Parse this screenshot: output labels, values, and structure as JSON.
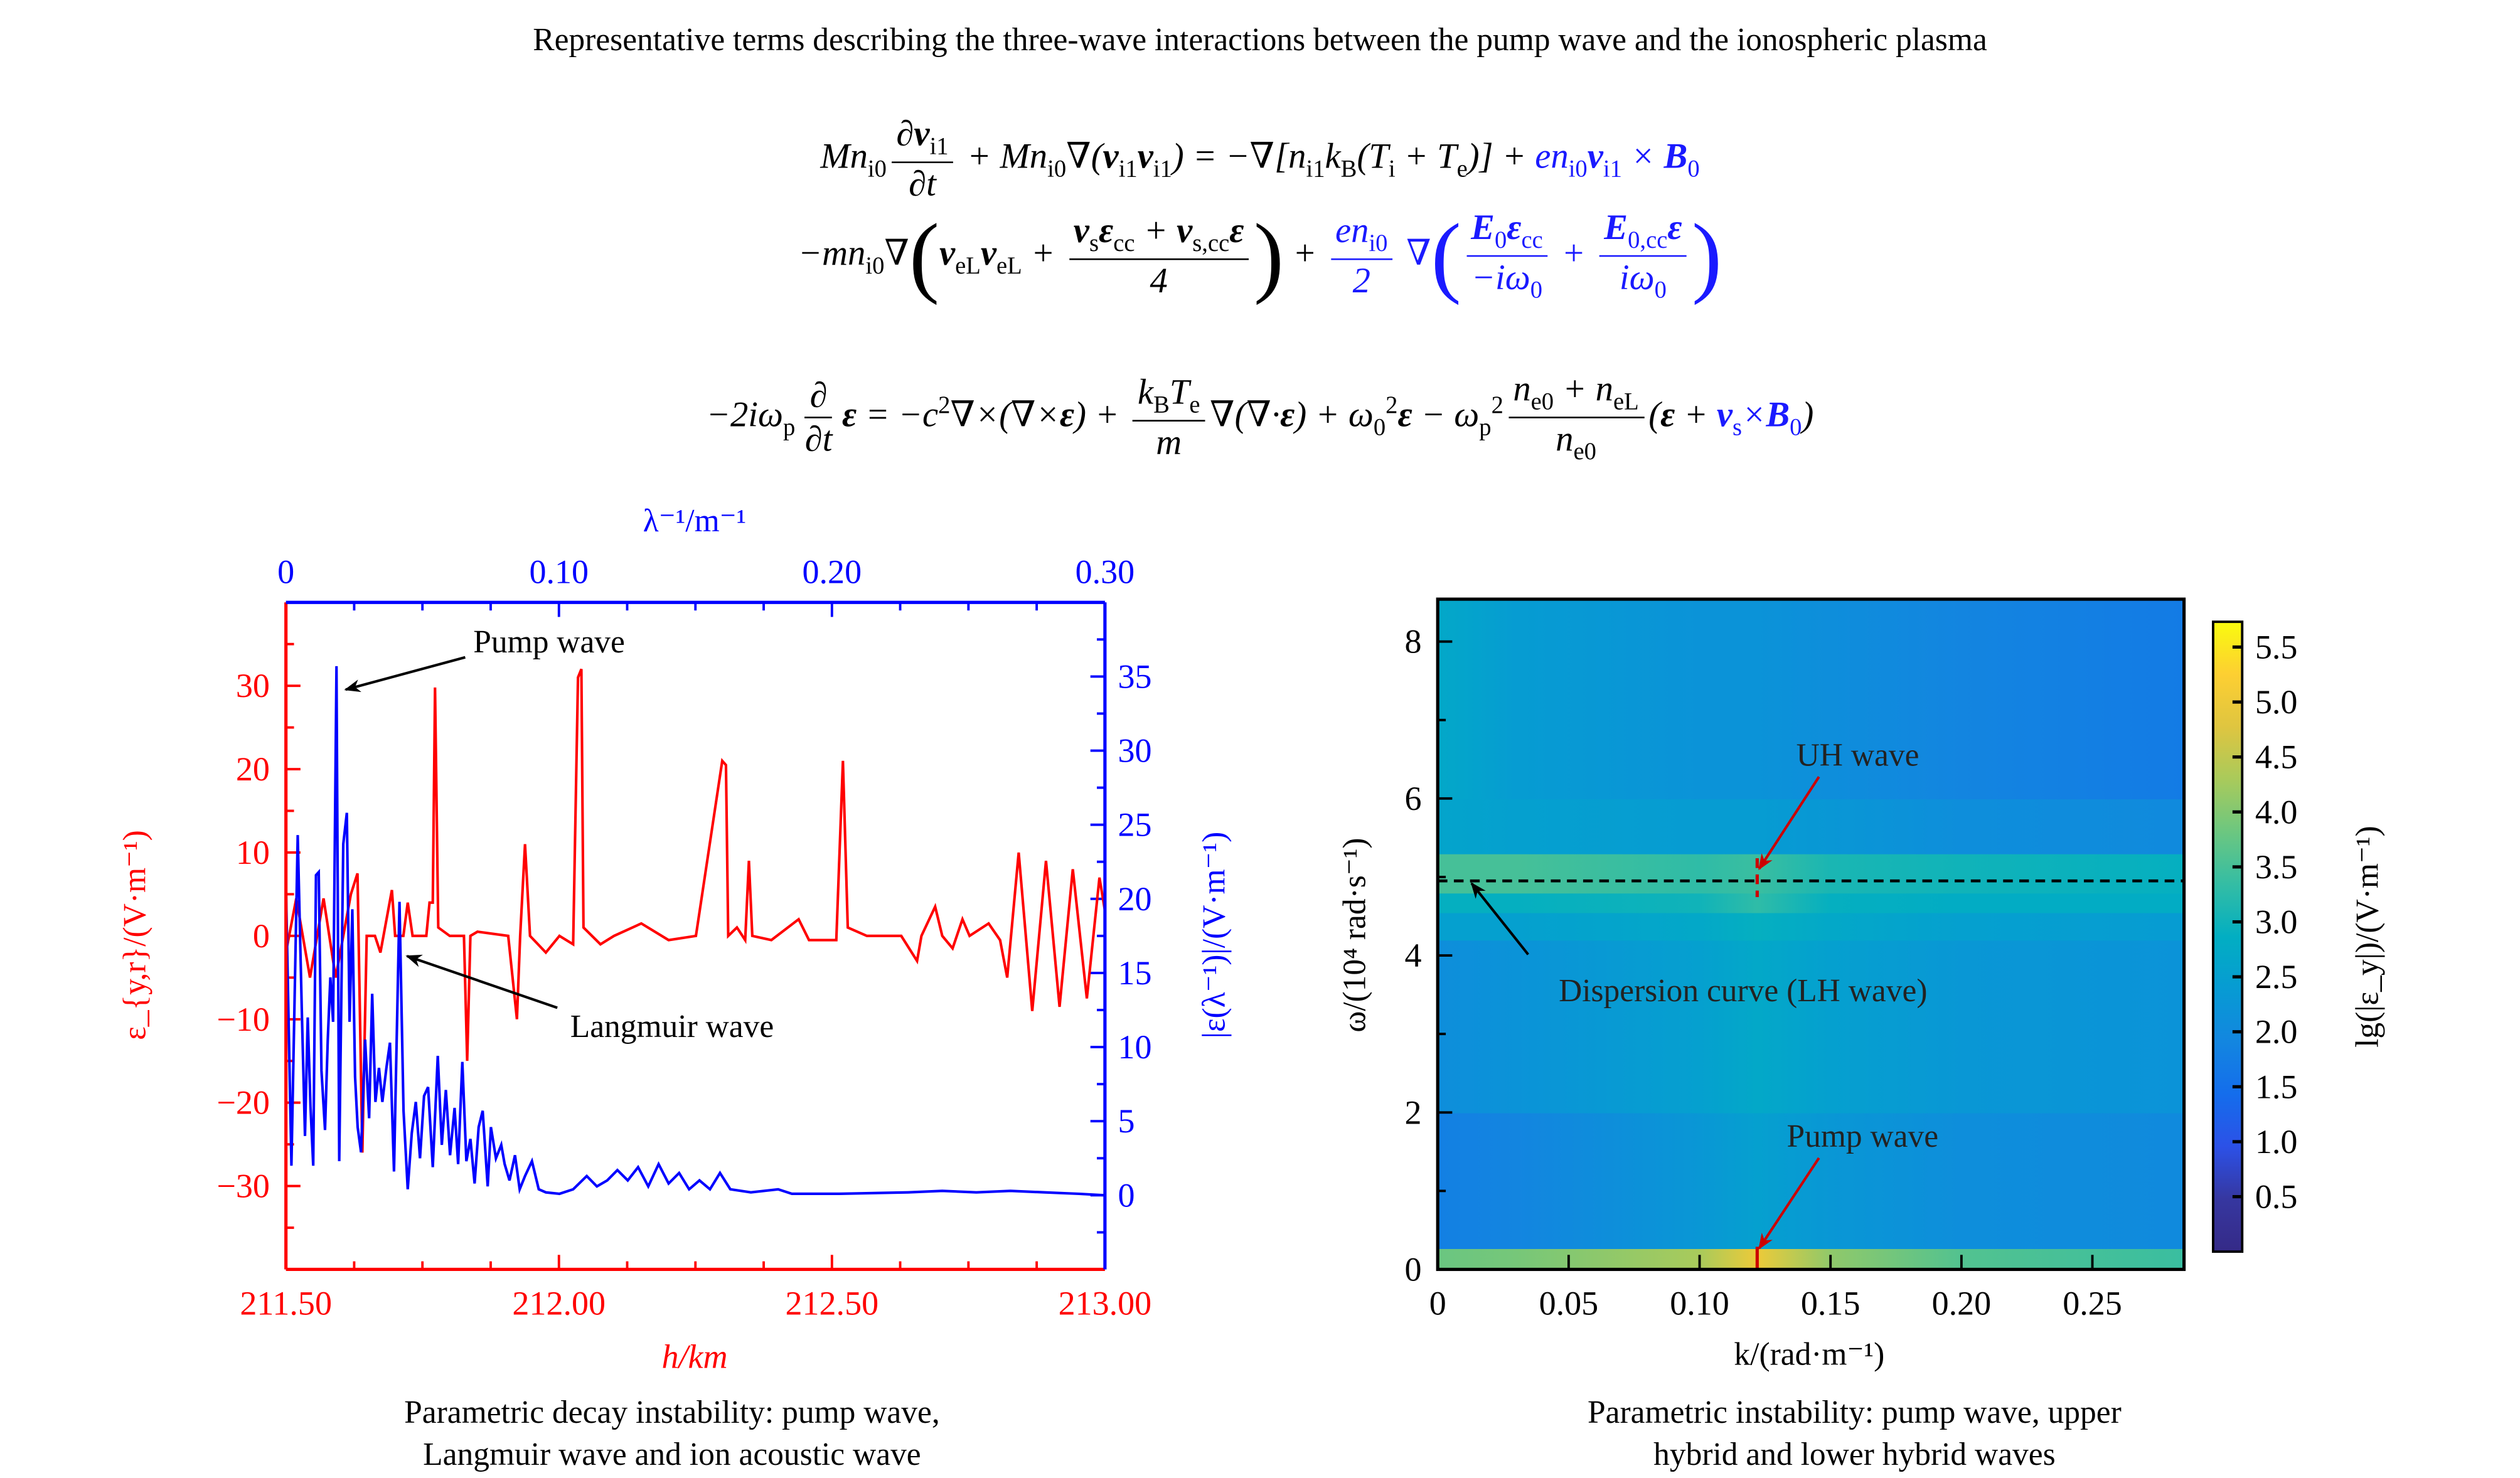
{
  "title": "Representative terms describing the three-wave interactions between the pump wave and the ionospheric plasma",
  "equations": [
    {
      "parts": [
        {
          "t": "Mn_{i0}"
        },
        {
          "f": [
            "∂*v*_{i1}",
            "∂t"
          ]
        },
        {
          "t": " + Mn_{i0}∇(*v*_{i1}*v*_{i1}) = −∇[n_{i1}k_{B}(T_{i} + T_{e})] + "
        },
        {
          "t": "en_{i0}*v*_{i1} × *B*_{0}",
          "c": "blue"
        }
      ]
    },
    {
      "parts": [
        {
          "t": "−mn_{i0}∇"
        },
        {
          "p": "("
        },
        {
          "t": "*v*_{eL}*v*_{eL} + "
        },
        {
          "f": [
            "*v*_{s}*ε*_{cc} + *v*_{s,cc}*ε*",
            "4"
          ]
        },
        {
          "p": ")"
        },
        {
          "t": " + "
        },
        {
          "f": [
            "en_{i0}",
            "2"
          ],
          "c": "blue"
        },
        {
          "t": " ∇",
          "c": "blue"
        },
        {
          "p": "(",
          "c": "blue"
        },
        {
          "f": [
            "*E*_{0}*ε*_{cc}",
            "−iω_{0}"
          ],
          "c": "blue"
        },
        {
          "t": " + ",
          "c": "blue"
        },
        {
          "f": [
            "*E*_{0,cc}*ε*",
            "iω_{0}"
          ],
          "c": "blue"
        },
        {
          "p": ")",
          "c": "blue"
        }
      ]
    },
    {
      "parts": [
        {
          "t": "−2iω_{p}"
        },
        {
          "f": [
            "∂",
            "∂t"
          ]
        },
        {
          "t": "*ε* = −c^{2}∇×(∇×*ε*) + "
        },
        {
          "f": [
            "k_{B}T_{e}",
            "m"
          ]
        },
        {
          "t": "∇(∇·*ε*) + ω_{0}^{2}*ε* − ω_{p}^{2}"
        },
        {
          "f": [
            "n_{e0} + n_{eL}",
            "n_{e0}"
          ]
        },
        {
          "t": "(*ε* + "
        },
        {
          "t": "*v*_{s}×*B*_{0}",
          "c": "blue"
        },
        {
          "t": ")"
        }
      ]
    }
  ],
  "colors": {
    "red": "#ff0000",
    "blue": "#0000ff",
    "annotation_red": "#cc0000",
    "black": "#000000"
  },
  "captions": {
    "left": [
      "Parametric decay instability: pump wave,",
      "Langmuir wave and ion acoustic wave"
    ],
    "right": [
      "Parametric instability: pump wave, upper",
      "hybrid and lower hybrid waves"
    ]
  },
  "chart_data": [
    {
      "type": "line",
      "xlabel": "h/km",
      "x2label": "λ⁻¹/m⁻¹",
      "ylabel": "ε_{y,r}/(V·m⁻¹)",
      "y2label": "|ε(λ⁻¹)|/(V·m⁻¹)",
      "xlim": [
        211.5,
        213.0
      ],
      "x2lim": [
        0,
        0.3
      ],
      "ylim": [
        -40,
        40
      ],
      "y2lim": [
        -5,
        40
      ],
      "xticks": [
        "211.50",
        "212.00",
        "212.50",
        "213.00"
      ],
      "x2ticks": [
        "0",
        "0.10",
        "0.20",
        "0.30"
      ],
      "yticks": [
        "30",
        "20",
        "10",
        "0",
        "−10",
        "−20",
        "−30"
      ],
      "y2ticks": [
        "35",
        "30",
        "25",
        "20",
        "15",
        "10",
        "5",
        "0"
      ],
      "grid": false,
      "annotations": [
        {
          "text": "Pump wave",
          "target": "blue peak ≈ 35.7 at λ⁻¹ ≈ 0.019"
        },
        {
          "text": "Langmuir wave",
          "target": "blue peak ≈ 19.8 at λ⁻¹ ≈ 0.042"
        }
      ],
      "series": [
        {
          "axis": "h / left (red)",
          "color": "#ff0000",
          "x": [
            211.5,
            211.519,
            211.544,
            211.569,
            211.591,
            211.619,
            211.631,
            211.64,
            211.648,
            211.663,
            211.673,
            211.694,
            211.7,
            211.715,
            211.723,
            211.732,
            211.757,
            211.763,
            211.769,
            211.773,
            211.779,
            211.8,
            211.826,
            211.832,
            211.838,
            211.851,
            211.907,
            211.923,
            211.929,
            211.938,
            211.947,
            211.976,
            212.001,
            212.026,
            212.035,
            212.041,
            212.045,
            212.076,
            212.101,
            212.151,
            212.201,
            212.251,
            212.299,
            212.306,
            212.31,
            212.326,
            212.341,
            212.348,
            212.354,
            212.389,
            212.439,
            212.458,
            212.508,
            212.52,
            212.529,
            212.564,
            212.627,
            212.656,
            212.664,
            212.689,
            212.702,
            212.721,
            212.739,
            212.752,
            212.787,
            212.808,
            212.821,
            212.842,
            212.867,
            212.892,
            212.917,
            212.941,
            212.967,
            212.99,
            213.0
          ],
          "y": [
            -2,
            4.5,
            -5,
            4.5,
            -5,
            5,
            7.5,
            -26,
            0,
            0,
            -2,
            5.5,
            0,
            0,
            4,
            0,
            0,
            4,
            4,
            29.8,
            1,
            0,
            0,
            -15,
            0,
            0.5,
            0,
            -10,
            0,
            11,
            0,
            -2,
            0,
            -1,
            31,
            32,
            1,
            -1,
            0,
            1.5,
            -0.5,
            0,
            21,
            20.5,
            0,
            1,
            -0.5,
            9,
            0,
            -0.5,
            2,
            -0.5,
            -0.5,
            21,
            1,
            0,
            0,
            -3,
            0,
            3.5,
            0,
            -1.5,
            2,
            0,
            1.5,
            -0.5,
            -5,
            10,
            -9,
            9,
            -8.5,
            8,
            -7.5,
            7,
            3
          ]
        },
        {
          "axis": "λ⁻¹ / right (blue)",
          "color": "#0000ff",
          "x": [
            0,
            0.002,
            0.0043,
            0.0058,
            0.007,
            0.008,
            0.009,
            0.01,
            0.011,
            0.012,
            0.013,
            0.0143,
            0.0153,
            0.0163,
            0.0173,
            0.0185,
            0.0195,
            0.021,
            0.0223,
            0.0233,
            0.0243,
            0.0253,
            0.0263,
            0.0275,
            0.029,
            0.0305,
            0.0316,
            0.0328,
            0.0341,
            0.0353,
            0.0368,
            0.0381,
            0.0396,
            0.0416,
            0.0431,
            0.0446,
            0.0461,
            0.0476,
            0.0491,
            0.0506,
            0.0521,
            0.0538,
            0.0556,
            0.0571,
            0.0586,
            0.0601,
            0.0618,
            0.0631,
            0.0646,
            0.0661,
            0.0676,
            0.0691,
            0.0706,
            0.0721,
            0.0739,
            0.0751,
            0.0769,
            0.0789,
            0.0801,
            0.0819,
            0.0839,
            0.0856,
            0.0876,
            0.0901,
            0.0926,
            0.0952,
            0.1002,
            0.1052,
            0.1102,
            0.1139,
            0.1177,
            0.1214,
            0.1252,
            0.129,
            0.1327,
            0.1365,
            0.1402,
            0.144,
            0.1477,
            0.1515,
            0.1553,
            0.159,
            0.1628,
            0.1703,
            0.1803,
            0.1853,
            0.2028,
            0.2279,
            0.2404,
            0.2529,
            0.2654,
            0.2779,
            0.2905,
            0.3
          ],
          "y": [
            21,
            2,
            24.3,
            12.6,
            4,
            12,
            6,
            2,
            21.6,
            21.8,
            8.4,
            4.4,
            10.5,
            14.7,
            11.7,
            35.7,
            2.3,
            23.7,
            25.8,
            11.7,
            19.3,
            8,
            4.6,
            2.9,
            10.5,
            5.2,
            13.6,
            6.3,
            8.6,
            6.3,
            8.6,
            10.3,
            1.6,
            19.8,
            5.7,
            0.4,
            4.2,
            6.3,
            2.5,
            6.7,
            7.3,
            1.9,
            9.4,
            3.4,
            7.1,
            2.7,
            5.9,
            2.1,
            9,
            2.3,
            3.8,
            0.8,
            4.6,
            5.7,
            0.6,
            4.6,
            2.5,
            3.4,
            2.1,
            1,
            2.7,
            0.4,
            1.3,
            2.3,
            0.4,
            0.2,
            0.1,
            0.4,
            1.3,
            0.6,
            1.0,
            1.7,
            1.0,
            1.9,
            0.6,
            2.1,
            0.8,
            1.5,
            0.4,
            1.0,
            0.4,
            1.5,
            0.4,
            0.2,
            0.4,
            0.1,
            0.1,
            0.2,
            0.3,
            0.2,
            0.3,
            0.2,
            0.1,
            0
          ]
        }
      ]
    },
    {
      "type": "heatmap",
      "xlabel": "k/(rad·m⁻¹)",
      "ylabel": "ω/(10⁴ rad·s⁻¹)",
      "colorbar_label": "lg(|ε_y|)/(V·m⁻¹)",
      "colormap": "parula",
      "xlim": [
        0,
        0.285
      ],
      "ylim": [
        0,
        8.54
      ],
      "clim": [
        0,
        5.73
      ],
      "xticks": [
        "0",
        "0.05",
        "0.10",
        "0.15",
        "0.20",
        "0.25"
      ],
      "yticks": [
        "0",
        "2",
        "4",
        "6",
        "8"
      ],
      "cticks": [
        "5.5",
        "5.0",
        "4.5",
        "4.0",
        "3.5",
        "3.0",
        "2.5",
        "2.0",
        "1.5",
        "1.0",
        "0.5"
      ],
      "k_columns": [
        0,
        0.03,
        0.1,
        0.122,
        0.15,
        0.2,
        0.285
      ],
      "rows": [
        {
          "omega": [
            0,
            0.27
          ],
          "values": [
            3.8,
            3.9,
            4.3,
            5.0,
            4.1,
            3.6,
            3.4
          ]
        },
        {
          "omega": [
            0.27,
            2.0
          ],
          "values": [
            1.8,
            1.9,
            2.3,
            2.5,
            2.3,
            2.1,
            2.0
          ]
        },
        {
          "omega": [
            2.0,
            4.2
          ],
          "values": [
            2.1,
            2.2,
            2.5,
            2.7,
            2.5,
            2.3,
            2.2
          ]
        },
        {
          "omega": [
            4.2,
            4.55
          ],
          "values": [
            2.5,
            2.5,
            2.7,
            2.9,
            2.7,
            2.5,
            2.4
          ]
        },
        {
          "omega": [
            4.55,
            4.8
          ],
          "values": [
            2.9,
            2.9,
            3.0,
            3.3,
            2.9,
            2.8,
            2.8
          ]
        },
        {
          "omega": [
            4.8,
            5.3
          ],
          "values": [
            3.5,
            3.5,
            3.3,
            3.4,
            3.1,
            3.0,
            2.9
          ]
        },
        {
          "omega": [
            5.3,
            6.0
          ],
          "values": [
            2.6,
            2.5,
            2.4,
            2.4,
            2.3,
            2.1,
            2.0
          ]
        },
        {
          "omega": [
            6.0,
            8.54
          ],
          "values": [
            2.7,
            2.4,
            2.2,
            2.2,
            2.1,
            1.9,
            1.7
          ]
        }
      ],
      "dispersion_curve_omega": 4.95,
      "annotations": [
        {
          "text": "UH wave",
          "k": 0.122,
          "omega": 4.95
        },
        {
          "text": "Pump wave",
          "k": 0.122,
          "omega": 0.2
        },
        {
          "text": "Dispersion curve (LH wave)",
          "k": 0.005,
          "omega": 4.95
        }
      ]
    }
  ]
}
